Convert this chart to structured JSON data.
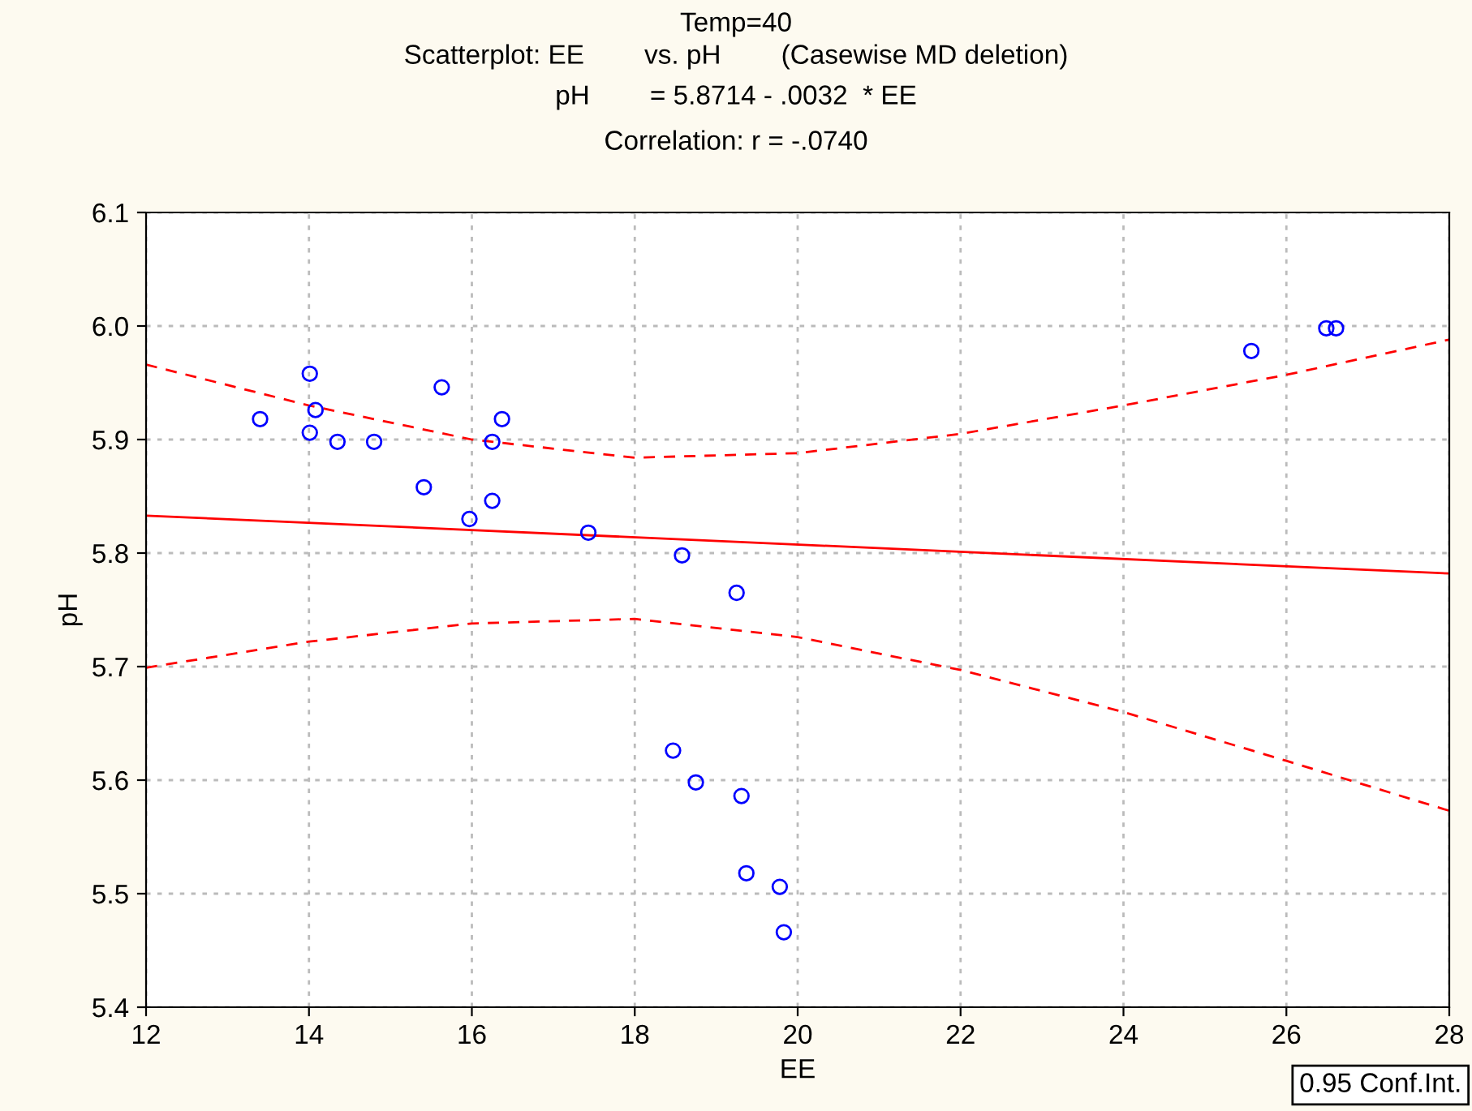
{
  "chart_data": {
    "type": "scatter",
    "title": "Temp=40\nScatterplot: EE        vs. pH        (Casewise MD deletion)",
    "subtitle": "pH        = 5.8714 - .0032  * EE\nCorrelation: r = -.0740",
    "xlabel": "EE",
    "ylabel": "pH",
    "series": [
      {
        "color": "#0000ff",
        "marker": "circle",
        "x": [
          13.4,
          14.01,
          14.08,
          14.01,
          14.35,
          14.8,
          15.63,
          16.37,
          16.25,
          15.41,
          16.25,
          15.97,
          17.43,
          18.58,
          19.25,
          18.47,
          18.75,
          19.31,
          19.37,
          19.78,
          19.83,
          25.57,
          26.49,
          26.61
        ],
        "values": [
          5.918,
          5.958,
          5.926,
          5.906,
          5.898,
          5.898,
          5.946,
          5.918,
          5.898,
          5.858,
          5.846,
          5.83,
          5.818,
          5.798,
          5.765,
          5.626,
          5.598,
          5.586,
          5.518,
          5.506,
          5.466,
          5.978,
          5.998,
          5.998
        ]
      },
      {
        "type": "line",
        "color": "#ff0000",
        "line_style": "solid",
        "marker": "none",
        "x": [
          12,
          28
        ],
        "values": [
          5.833,
          5.782
        ]
      },
      {
        "type": "line",
        "color": "#ff0000",
        "line_style": "dashed",
        "marker": "none",
        "x": [
          12,
          14,
          16,
          18,
          20,
          22,
          24,
          26,
          28
        ],
        "values": [
          5.966,
          5.93,
          5.9,
          5.884,
          5.888,
          5.905,
          5.93,
          5.957,
          5.988
        ]
      },
      {
        "type": "line",
        "color": "#ff0000",
        "line_style": "dashed",
        "marker": "none",
        "x": [
          12,
          14,
          16,
          18,
          20,
          22,
          24,
          26,
          28
        ],
        "values": [
          5.699,
          5.722,
          5.738,
          5.742,
          5.726,
          5.697,
          5.66,
          5.617,
          5.573
        ]
      }
    ],
    "xlim": [
      12,
      28
    ],
    "xticks": [
      12,
      14,
      16,
      18,
      20,
      22,
      24,
      26,
      28
    ],
    "ylim": [
      5.4,
      6.1
    ],
    "yticks": [
      {
        "value": 5.4,
        "label": "5.4"
      },
      {
        "value": 5.5,
        "label": "5.5"
      },
      {
        "value": 5.6,
        "label": "5.6"
      },
      {
        "value": 5.7,
        "label": "5.7"
      },
      {
        "value": 5.8,
        "label": "5.8"
      },
      {
        "value": 5.9,
        "label": "5.9"
      },
      {
        "value": 6.0,
        "label": "6.0"
      },
      {
        "value": 6.1,
        "label": "6.1"
      }
    ],
    "grid": true,
    "legend": false,
    "annotations": [
      "0.95 Conf.Int."
    ]
  }
}
